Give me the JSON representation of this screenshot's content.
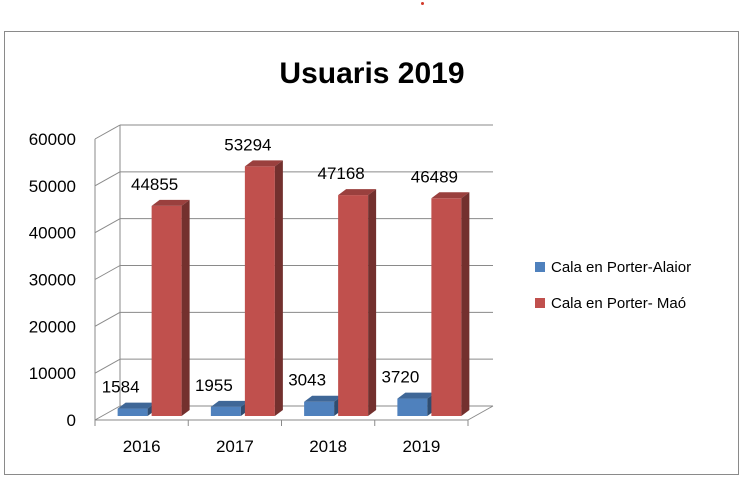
{
  "chart_data": {
    "type": "bar",
    "title": "Usuaris 2019",
    "categories": [
      "2016",
      "2017",
      "2018",
      "2019"
    ],
    "series": [
      {
        "name": "Cala en Porter-Alaior",
        "values": [
          1584,
          1955,
          3043,
          3720
        ],
        "color": "#4f81bd"
      },
      {
        "name": "Cala en Porter- Maó",
        "values": [
          44855,
          53294,
          47168,
          46489
        ],
        "color": "#c0504d"
      }
    ],
    "ylim": [
      0,
      60000
    ],
    "yticks": [
      "0",
      "10000",
      "20000",
      "30000",
      "40000",
      "50000",
      "60000"
    ],
    "grid": true,
    "legend": "right",
    "style": "3d-column"
  }
}
